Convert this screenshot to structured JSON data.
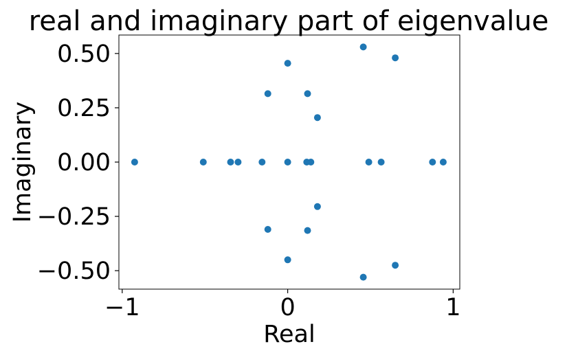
{
  "chart_data": {
    "type": "scatter",
    "title": "real and imaginary part of eigenvalue",
    "xlabel": "Real",
    "ylabel": "Imaginary",
    "xlim": [
      -1.02,
      1.04
    ],
    "ylim": [
      -0.585,
      0.585
    ],
    "xticks": [
      {
        "value": -1,
        "label": "−1"
      },
      {
        "value": 0,
        "label": "0"
      },
      {
        "value": 1,
        "label": "1"
      }
    ],
    "yticks": [
      {
        "value": 0.5,
        "label": "0.50"
      },
      {
        "value": 0.25,
        "label": "0.25"
      },
      {
        "value": 0,
        "label": "0.00"
      },
      {
        "value": -0.25,
        "label": "−0.25"
      },
      {
        "value": -0.5,
        "label": "−0.50"
      }
    ],
    "grid": false,
    "marker_color": "#1f77b4",
    "points": [
      {
        "x": 0.457,
        "y": 0.53
      },
      {
        "x": 0.65,
        "y": 0.48
      },
      {
        "x": 0.0,
        "y": 0.455
      },
      {
        "x": -0.12,
        "y": 0.315
      },
      {
        "x": 0.12,
        "y": 0.315
      },
      {
        "x": 0.18,
        "y": 0.205
      },
      {
        "x": -0.925,
        "y": 0.0
      },
      {
        "x": -0.51,
        "y": 0.0
      },
      {
        "x": -0.345,
        "y": 0.0
      },
      {
        "x": -0.3,
        "y": 0.0
      },
      {
        "x": -0.155,
        "y": 0.0
      },
      {
        "x": 0.0,
        "y": 0.0
      },
      {
        "x": 0.115,
        "y": 0.0
      },
      {
        "x": 0.14,
        "y": 0.0
      },
      {
        "x": 0.49,
        "y": 0.0
      },
      {
        "x": 0.565,
        "y": 0.0
      },
      {
        "x": 0.875,
        "y": 0.0
      },
      {
        "x": 0.94,
        "y": 0.0
      },
      {
        "x": 0.18,
        "y": -0.205
      },
      {
        "x": -0.12,
        "y": -0.31
      },
      {
        "x": 0.12,
        "y": -0.315
      },
      {
        "x": 0.0,
        "y": -0.45
      },
      {
        "x": 0.65,
        "y": -0.475
      },
      {
        "x": 0.457,
        "y": -0.53
      }
    ]
  }
}
